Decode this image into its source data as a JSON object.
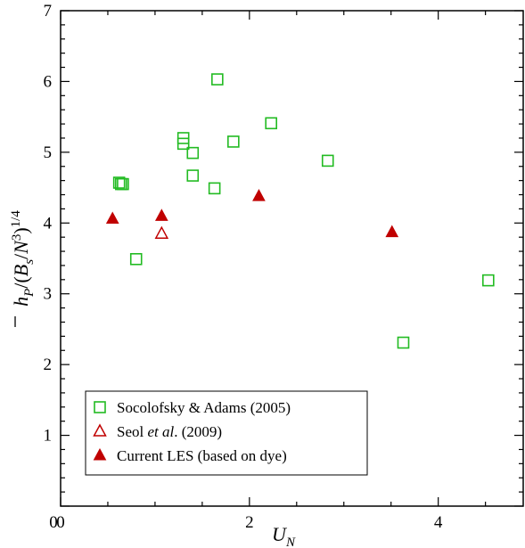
{
  "chart_data": {
    "type": "scatter",
    "xlabel": "U_N",
    "ylabel": "h̄_P/(B_s/N³)^{1/4}",
    "xlim": [
      0,
      4.9
    ],
    "ylim": [
      0,
      7
    ],
    "xticks": [
      "0",
      "2",
      "4"
    ],
    "yticks": [
      "1",
      "2",
      "3",
      "4",
      "5",
      "6",
      "7"
    ],
    "grid": false,
    "legend_position": "bottom-left",
    "series": [
      {
        "name": "Socolofsky & Adams (2005)",
        "marker": "square-open",
        "color": "#22bb22",
        "points": [
          [
            0.62,
            4.57
          ],
          [
            0.64,
            4.55
          ],
          [
            0.66,
            4.55
          ],
          [
            0.8,
            3.49
          ],
          [
            1.3,
            5.2
          ],
          [
            1.3,
            5.12
          ],
          [
            1.4,
            4.99
          ],
          [
            1.4,
            4.67
          ],
          [
            1.63,
            4.49
          ],
          [
            1.66,
            6.03
          ],
          [
            1.83,
            5.15
          ],
          [
            2.23,
            5.41
          ],
          [
            2.83,
            4.88
          ],
          [
            3.63,
            2.31
          ],
          [
            4.53,
            3.19
          ]
        ]
      },
      {
        "name": "Seol et al. (2009)",
        "marker": "triangle-open",
        "color": "#c00000",
        "points": [
          [
            1.07,
            3.85
          ]
        ]
      },
      {
        "name": "Current LES (based on dye)",
        "marker": "triangle-filled",
        "color": "#c00000",
        "points": [
          [
            0.55,
            4.06
          ],
          [
            1.07,
            4.1
          ],
          [
            2.1,
            4.38
          ],
          [
            3.51,
            3.87
          ]
        ]
      }
    ]
  },
  "legend": {
    "entries": [
      {
        "label": "Socolofsky & Adams (2005)"
      },
      {
        "label_parts": [
          "Seol ",
          "et al",
          ". (2009)"
        ]
      },
      {
        "label": "Current LES (based on dye)"
      }
    ]
  },
  "ylabel_parts": [
    "h",
    "P",
    "/(",
    "B",
    "s",
    "/",
    "N",
    "3",
    ")",
    "1/4"
  ],
  "xlabel_parts": [
    "U",
    "N"
  ]
}
